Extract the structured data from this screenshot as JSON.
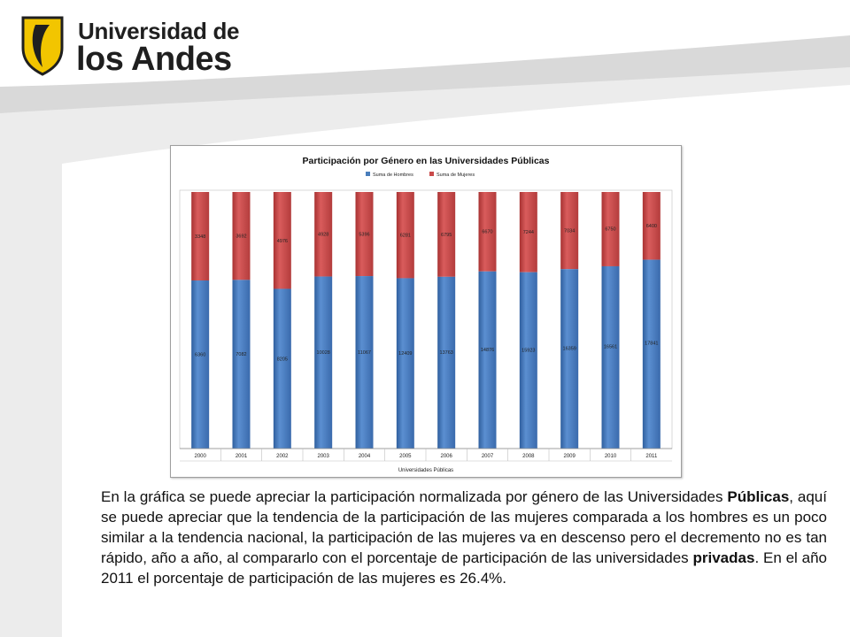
{
  "header": {
    "logo_line1": "Universidad de",
    "logo_line2": "los Andes"
  },
  "colors": {
    "hombres": "#4a7ebb",
    "mujeres": "#c94a4a",
    "background_swoosh": "#d6d6d6",
    "logo_yellow": "#f2c500"
  },
  "chart_data": {
    "type": "bar",
    "stacked": true,
    "normalized": true,
    "title": "Participación por Género en las Universidades Públicas",
    "xlabel": "Universidades Públicas",
    "ylabel": "",
    "legend_position": "top",
    "categories": [
      "2000",
      "2001",
      "2002",
      "2003",
      "2004",
      "2005",
      "2006",
      "2007",
      "2008",
      "2009",
      "2010",
      "2011"
    ],
    "series": [
      {
        "name": "Suma de Hombres",
        "values": [
          6360,
          7082,
          8205,
          10028,
          11067,
          12409,
          13763,
          14876,
          15923,
          16359,
          16561,
          17841
        ]
      },
      {
        "name": "Suma de Mujeres",
        "values": [
          3348,
          3692,
          4976,
          4928,
          5396,
          6281,
          6795,
          6670,
          7244,
          7034,
          6750,
          6400
        ]
      }
    ]
  },
  "description": {
    "p1": "En la gráfica se puede apreciar la participación normalizada por género de las Universidades ",
    "b1": "Públicas",
    "p2": ", aquí se puede apreciar que la tendencia de la participación de las mujeres comparada a los hombres es un poco similar a la tendencia nacional, la participación de las mujeres va en descenso pero el decremento no es tan rápido, año a año, al compararlo con el porcentaje de participación de las universidades ",
    "b2": "privadas",
    "p3": ". En el año 2011 el porcentaje de participación de las mujeres es 26.4%."
  }
}
